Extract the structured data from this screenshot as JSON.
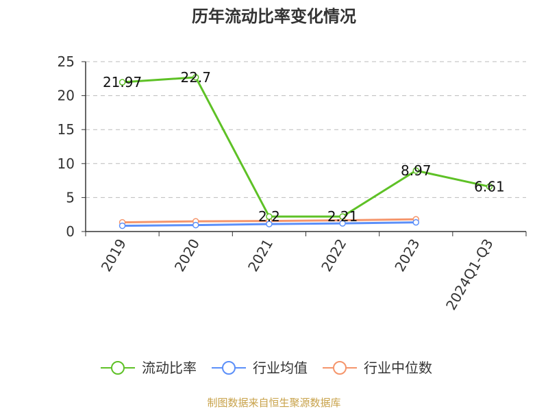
{
  "chart_data": {
    "type": "line",
    "title": "历年流动比率变化情况",
    "categories": [
      "2019",
      "2020",
      "2021",
      "2022",
      "2023",
      "2024Q1-Q3"
    ],
    "ylim": [
      0,
      25
    ],
    "yticks": [
      "0",
      "5",
      "10",
      "15",
      "20",
      "25"
    ],
    "grid": true,
    "legend_position": "bottom",
    "series": [
      {
        "name": "流动比率",
        "color": "#5ec126",
        "values": [
          21.97,
          22.7,
          2.2,
          2.21,
          8.97,
          6.61
        ],
        "labels": [
          "21.97",
          "22.7",
          "2.2",
          "2.21",
          "8.97",
          "6.61"
        ]
      },
      {
        "name": "行业均值",
        "color": "#5b8ff9",
        "values": [
          0.85,
          0.95,
          1.1,
          1.2,
          1.35,
          null
        ]
      },
      {
        "name": "行业中位数",
        "color": "#f5956b",
        "values": [
          1.35,
          1.5,
          1.55,
          1.65,
          1.8,
          null
        ]
      }
    ]
  },
  "source_text": "制图数据来自恒生聚源数据库",
  "source_color": "#c8a24a"
}
